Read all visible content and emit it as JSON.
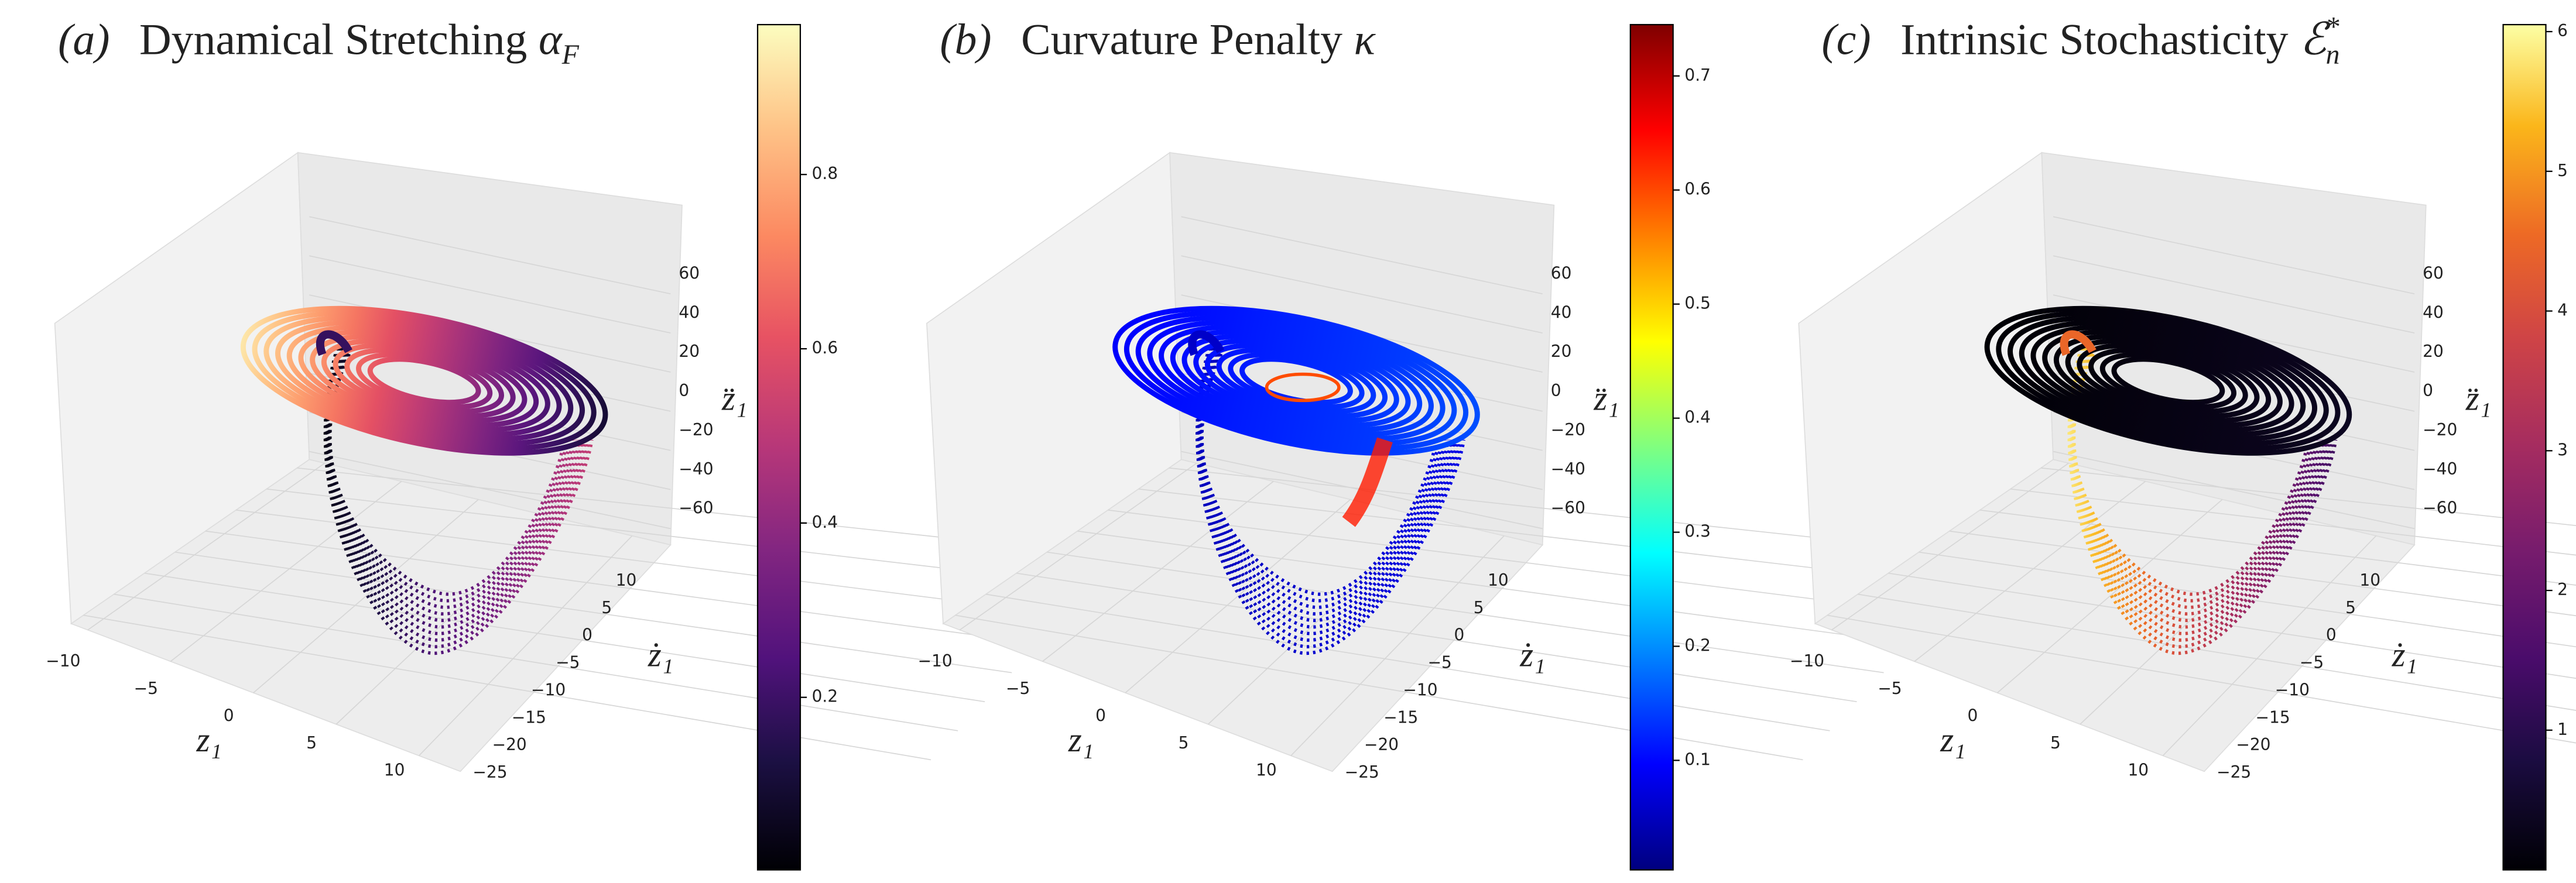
{
  "chart_data": [
    {
      "type": "scatter3d",
      "label": "(a)",
      "title": "Dynamical Stretching",
      "symbol": "α",
      "symbol_sub": "F",
      "xlabel": "z₁",
      "ylabel": "ż₁",
      "zlabel": "z̈₁",
      "xlim": [
        -11,
        12.5
      ],
      "xticks": [
        {
          "value": -10,
          "label": "−10"
        },
        {
          "value": -5,
          "label": "−5"
        },
        0,
        5,
        10
      ],
      "ylim": [
        -27,
        12
      ],
      "yticks": [
        {
          "value": -25,
          "label": "−25"
        },
        {
          "value": -20,
          "label": "−20"
        },
        {
          "value": -15,
          "label": "−15"
        },
        {
          "value": -10,
          "label": "−10"
        },
        {
          "value": -5,
          "label": "−5"
        },
        0,
        5,
        10
      ],
      "zlim": [
        -70,
        68
      ],
      "zticks": [
        {
          "value": -60,
          "label": "−60"
        },
        {
          "value": -40,
          "label": "−40"
        },
        {
          "value": -20,
          "label": "−20"
        },
        0,
        20,
        40,
        60
      ],
      "colormap": "magma",
      "clim": [
        0.002,
        0.972
      ],
      "cticks": [
        0.2,
        0.4,
        0.6,
        0.8
      ]
    },
    {
      "type": "scatter3d",
      "label": "(b)",
      "title": "Curvature Penalty",
      "symbol": "κ",
      "xlabel": "z₁",
      "ylabel": "ż₁",
      "zlabel": "z̈₁",
      "xlim": [
        -11,
        12.5
      ],
      "xticks": [
        {
          "value": -10,
          "label": "−10"
        },
        {
          "value": -5,
          "label": "−5"
        },
        0,
        5,
        10
      ],
      "ylim": [
        -27,
        12
      ],
      "yticks": [
        {
          "value": -25,
          "label": "−25"
        },
        {
          "value": -20,
          "label": "−20"
        },
        {
          "value": -15,
          "label": "−15"
        },
        {
          "value": -10,
          "label": "−10"
        },
        {
          "value": -5,
          "label": "−5"
        },
        0,
        5,
        10
      ],
      "zlim": [
        -70,
        68
      ],
      "zticks": [
        {
          "value": -60,
          "label": "−60"
        },
        {
          "value": -40,
          "label": "−40"
        },
        {
          "value": -20,
          "label": "−20"
        },
        0,
        20,
        40,
        60
      ],
      "colormap": "jet",
      "clim": [
        0.004,
        0.745
      ],
      "cticks": [
        0.1,
        0.2,
        0.3,
        0.4,
        0.5,
        0.6,
        0.7
      ]
    },
    {
      "type": "scatter3d",
      "label": "(c)",
      "title": "Intrinsic Stochasticity",
      "symbol": "ℰ",
      "symbol_sup": "*",
      "symbol_sub": "n",
      "xlabel": "z₁",
      "ylabel": "ż₁",
      "zlabel": "z̈₁",
      "xlim": [
        -11,
        12.5
      ],
      "xticks": [
        {
          "value": -10,
          "label": "−10"
        },
        {
          "value": -5,
          "label": "−5"
        },
        0,
        5,
        10
      ],
      "ylim": [
        -27,
        12
      ],
      "yticks": [
        {
          "value": -25,
          "label": "−25"
        },
        {
          "value": -20,
          "label": "−20"
        },
        {
          "value": -15,
          "label": "−15"
        },
        {
          "value": -10,
          "label": "−10"
        },
        {
          "value": -5,
          "label": "−5"
        },
        0,
        5,
        10
      ],
      "zlim": [
        -70,
        68
      ],
      "zticks": [
        {
          "value": -60,
          "label": "−60"
        },
        {
          "value": -40,
          "label": "−40"
        },
        {
          "value": -20,
          "label": "−20"
        },
        0,
        20,
        40,
        60
      ],
      "colormap": "inferno",
      "clim": [
        0,
        6.05
      ],
      "cticks": [
        1,
        2,
        3,
        4,
        5,
        6
      ]
    }
  ]
}
